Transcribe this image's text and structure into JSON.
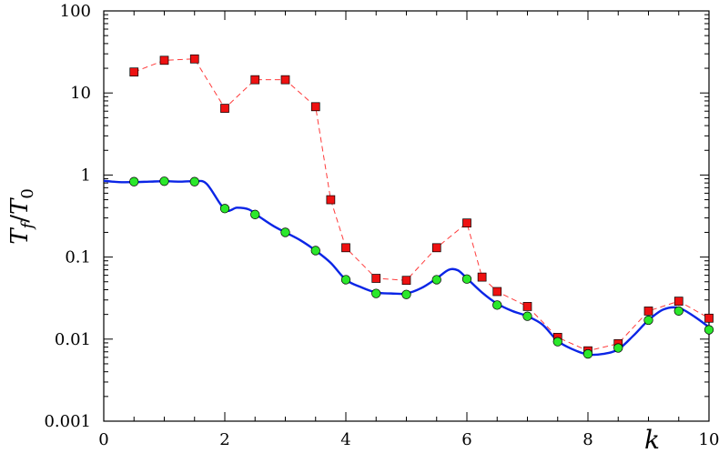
{
  "chart_data": {
    "type": "line",
    "xlabel": "k",
    "ylabel_main": "T",
    "ylabel_sub1": "f",
    "ylabel_slash": "/",
    "ylabel_main2": "T",
    "ylabel_sub2": "0",
    "xlim": [
      0,
      10
    ],
    "ylim": [
      0.001,
      100
    ],
    "yscale": "log",
    "grid": false,
    "x_ticks": [
      0,
      2,
      4,
      6,
      8,
      10
    ],
    "x_tick_labels": [
      "0",
      "2",
      "4",
      "6",
      "8",
      "10"
    ],
    "y_ticks": [
      0.001,
      0.01,
      0.1,
      1,
      10,
      100
    ],
    "y_tick_labels": [
      "0.001",
      "0.01",
      "0.1",
      "1",
      "10",
      "100"
    ],
    "series": [
      {
        "style": "dashed-line-square-markers",
        "line_color": "#ff3b3b",
        "marker_fill": "#ee1111",
        "x": [
          0.5,
          1.0,
          1.5,
          2.0,
          2.5,
          3.0,
          3.5,
          3.75,
          4.0,
          4.5,
          5.0,
          5.5,
          6.0,
          6.25,
          6.5,
          7.0,
          7.5,
          8.0,
          8.5,
          9.0,
          9.5,
          10.0
        ],
        "y": [
          18,
          25,
          26,
          6.5,
          14.5,
          14.5,
          6.8,
          0.5,
          0.13,
          0.055,
          0.052,
          0.13,
          0.26,
          0.057,
          0.038,
          0.025,
          0.0105,
          0.0072,
          0.0088,
          0.022,
          0.029,
          0.018
        ]
      },
      {
        "style": "solid-line",
        "line_color": "#0b25e6",
        "x": [
          0.0,
          0.25,
          0.5,
          0.75,
          1.0,
          1.25,
          1.5,
          1.7,
          2.0,
          2.2,
          2.4,
          2.6,
          2.8,
          3.0,
          3.25,
          3.5,
          3.75,
          4.0,
          4.25,
          4.5,
          4.75,
          5.0,
          5.25,
          5.5,
          5.7,
          5.85,
          6.0,
          6.25,
          6.5,
          6.75,
          7.0,
          7.25,
          7.5,
          7.75,
          8.0,
          8.25,
          8.5,
          8.75,
          9.0,
          9.25,
          9.5,
          9.75,
          10.0
        ],
        "y": [
          0.85,
          0.82,
          0.82,
          0.83,
          0.84,
          0.83,
          0.84,
          0.78,
          0.38,
          0.4,
          0.38,
          0.3,
          0.24,
          0.2,
          0.16,
          0.12,
          0.085,
          0.053,
          0.043,
          0.037,
          0.036,
          0.036,
          0.042,
          0.055,
          0.07,
          0.069,
          0.055,
          0.037,
          0.027,
          0.022,
          0.019,
          0.015,
          0.0095,
          0.0075,
          0.0065,
          0.0066,
          0.0075,
          0.011,
          0.017,
          0.023,
          0.024,
          0.019,
          0.014
        ]
      },
      {
        "style": "circle-markers",
        "marker_fill": "#2be82b",
        "x": [
          0.5,
          1.0,
          1.5,
          2.0,
          2.5,
          3.0,
          3.5,
          4.0,
          4.5,
          5.0,
          5.5,
          6.0,
          6.5,
          7.0,
          7.5,
          8.0,
          8.5,
          9.0,
          9.5,
          10.0
        ],
        "y": [
          0.83,
          0.84,
          0.83,
          0.39,
          0.33,
          0.2,
          0.12,
          0.053,
          0.036,
          0.035,
          0.053,
          0.054,
          0.026,
          0.019,
          0.0093,
          0.0066,
          0.0078,
          0.017,
          0.022,
          0.013
        ]
      }
    ]
  }
}
